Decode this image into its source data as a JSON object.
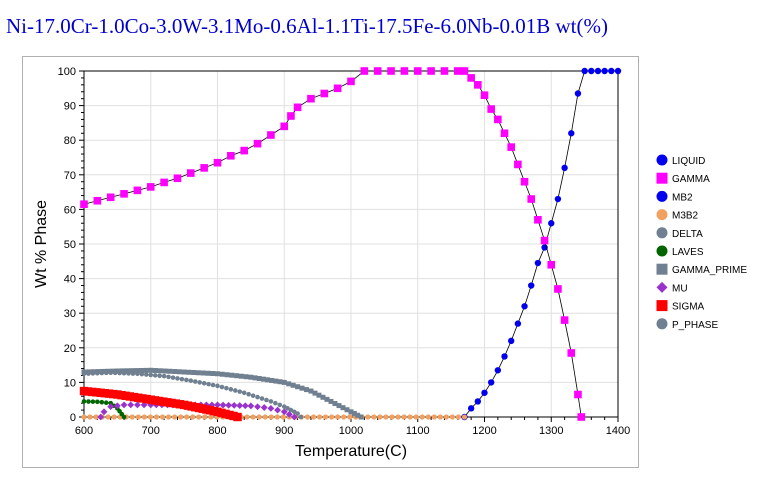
{
  "title": "Ni-17.0Cr-1.0Co-3.0W-3.1Mo-0.6Al-1.1Ti-17.5Fe-6.0Nb-0.01B wt(%)",
  "chart_data": {
    "type": "line",
    "title": "Ni-17.0Cr-1.0Co-3.0W-3.1Mo-0.6Al-1.1Ti-17.5Fe-6.0Nb-0.01B wt(%)",
    "xlabel": "Temperature(C)",
    "ylabel": "Wt % Phase",
    "xlim": [
      600,
      1400
    ],
    "ylim": [
      0,
      100
    ],
    "xticks": [
      "600",
      "700",
      "800",
      "900",
      "1000",
      "1100",
      "1200",
      "1300",
      "1400"
    ],
    "yticks": [
      "0",
      "10",
      "20",
      "30",
      "40",
      "50",
      "60",
      "70",
      "80",
      "90",
      "100"
    ],
    "grid": true,
    "legend_position": "right",
    "series": [
      {
        "name": "LIQUID",
        "color": "#0000ee",
        "marker": "circle",
        "x": [
          1170,
          1180,
          1190,
          1200,
          1210,
          1220,
          1230,
          1240,
          1250,
          1260,
          1270,
          1280,
          1290,
          1300,
          1310,
          1320,
          1330,
          1340,
          1350,
          1360,
          1370,
          1380,
          1390,
          1400
        ],
        "y": [
          0,
          2.5,
          4.5,
          7,
          10,
          13.5,
          17.5,
          22,
          27,
          32,
          38,
          44.5,
          49,
          56,
          63,
          72,
          82,
          93.5,
          100,
          100,
          100,
          100,
          100,
          100
        ]
      },
      {
        "name": "GAMMA",
        "color": "#ff00ff",
        "marker": "square",
        "x": [
          600,
          620,
          640,
          660,
          680,
          700,
          720,
          740,
          760,
          780,
          800,
          820,
          840,
          860,
          880,
          900,
          910,
          920,
          940,
          960,
          980,
          1000,
          1020,
          1040,
          1060,
          1080,
          1100,
          1120,
          1140,
          1160,
          1170,
          1180,
          1190,
          1200,
          1210,
          1220,
          1230,
          1240,
          1250,
          1260,
          1270,
          1280,
          1290,
          1300,
          1310,
          1320,
          1330,
          1340,
          1345
        ],
        "y": [
          61.5,
          62.5,
          63.5,
          64.5,
          65.5,
          66.5,
          67.8,
          69,
          70.5,
          72,
          73.5,
          75.5,
          77,
          79,
          81.5,
          84,
          87,
          89.5,
          92,
          93.5,
          95,
          97,
          100,
          100,
          100,
          100,
          100,
          100,
          100,
          100,
          100,
          98,
          96,
          93,
          89,
          86,
          82,
          78,
          73,
          68,
          63,
          57,
          51,
          44,
          37,
          28,
          18.5,
          6.5,
          0
        ]
      },
      {
        "name": "MB2",
        "color": "#0000ee",
        "marker": "circle",
        "x": [],
        "y": []
      },
      {
        "name": "M3B2",
        "color": "#f0a060",
        "marker": "circle",
        "x": [
          600,
          1170
        ],
        "y": [
          0,
          0
        ]
      },
      {
        "name": "DELTA",
        "color": "#708090",
        "marker": "circle",
        "x": [
          600,
          640,
          680,
          720,
          760,
          800,
          840,
          880,
          900,
          910,
          920,
          925
        ],
        "y": [
          12.5,
          12.8,
          12.5,
          11.8,
          10.5,
          9,
          7,
          4.5,
          3,
          2,
          1,
          0
        ]
      },
      {
        "name": "LAVES",
        "color": "#006400",
        "marker": "circle",
        "x": [
          600,
          620,
          640,
          650,
          660
        ],
        "y": [
          4.5,
          4.4,
          4,
          2.5,
          0
        ]
      },
      {
        "name": "GAMMA_PRIME",
        "color": "#708090",
        "marker": "square",
        "x": [
          600,
          650,
          700,
          750,
          800,
          850,
          900,
          940,
          970,
          1000,
          1015
        ],
        "y": [
          13,
          13.3,
          13.5,
          13,
          12.5,
          11.5,
          10,
          7.5,
          4.5,
          1.5,
          0
        ]
      },
      {
        "name": "MU",
        "color": "#9933cc",
        "marker": "diamond",
        "x": [
          625,
          630,
          640,
          660,
          700,
          750,
          800,
          850,
          880,
          900,
          915
        ],
        "y": [
          0,
          1.5,
          3,
          3.5,
          3.5,
          3.5,
          3.5,
          3.2,
          2.5,
          1.5,
          0
        ]
      },
      {
        "name": "SIGMA",
        "color": "#ff0000",
        "marker": "square",
        "x": [
          600,
          650,
          700,
          750,
          800,
          830
        ],
        "y": [
          7.5,
          6.5,
          5,
          3.5,
          1.5,
          0
        ]
      },
      {
        "name": "P_PHASE",
        "color": "#708090",
        "marker": "circle",
        "x": [],
        "y": []
      }
    ]
  }
}
